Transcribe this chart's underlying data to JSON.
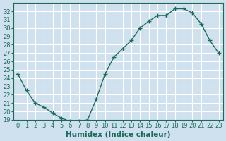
{
  "x": [
    0,
    1,
    2,
    3,
    4,
    5,
    6,
    7,
    8,
    9,
    10,
    11,
    12,
    13,
    14,
    15,
    16,
    17,
    18,
    19,
    20,
    21,
    22,
    23
  ],
  "y": [
    24.5,
    22.5,
    21.0,
    20.5,
    19.8,
    19.2,
    18.8,
    18.8,
    19.0,
    21.5,
    24.5,
    26.5,
    27.5,
    28.5,
    30.0,
    30.8,
    31.5,
    31.5,
    32.3,
    32.3,
    31.8,
    30.5,
    28.5,
    27.0
  ],
  "line_color": "#1a6b5a",
  "marker": "+",
  "marker_size": 4,
  "marker_linewidth": 1.0,
  "linewidth": 1.0,
  "xlabel": "Humidex (Indice chaleur)",
  "xlim": [
    -0.5,
    23.5
  ],
  "ylim": [
    19,
    33
  ],
  "yticks": [
    19,
    20,
    21,
    22,
    23,
    24,
    25,
    26,
    27,
    28,
    29,
    30,
    31,
    32
  ],
  "xticks": [
    0,
    1,
    2,
    3,
    4,
    5,
    6,
    7,
    8,
    9,
    10,
    11,
    12,
    13,
    14,
    15,
    16,
    17,
    18,
    19,
    20,
    21,
    22,
    23
  ],
  "bg_color": "#cfe0ee",
  "grid_color": "#ffffff",
  "tick_color": "#1a6b5a",
  "label_color": "#1a6b5a",
  "xlabel_fontsize": 7.5,
  "tick_fontsize": 6.0
}
